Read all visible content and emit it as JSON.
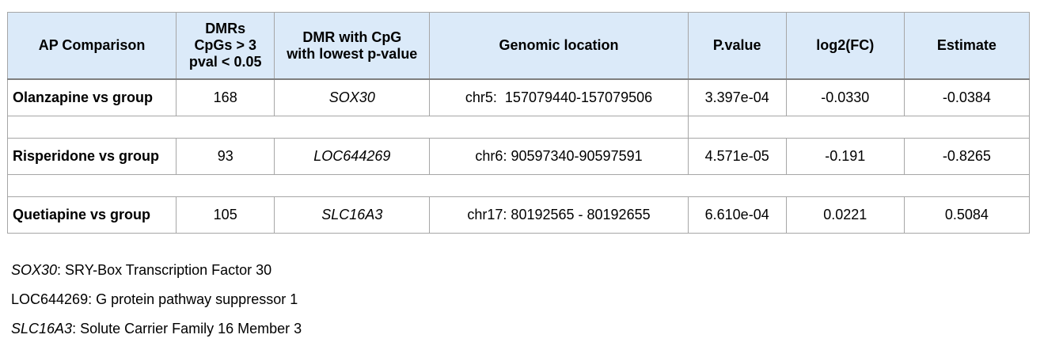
{
  "table": {
    "headers": [
      [
        "AP Comparison"
      ],
      [
        "DMRs",
        "CpGs > 3",
        "pval < 0.05"
      ],
      [
        "DMR with CpG",
        "with lowest p-value"
      ],
      [
        "Genomic location"
      ],
      [
        "P.value"
      ],
      [
        "log2(FC)"
      ],
      [
        "Estimate"
      ]
    ],
    "rows": [
      {
        "comparison": "Olanzapine vs group",
        "dmrs": "168",
        "gene": "SOX30",
        "location": "chr5:  157079440-157079506",
        "pvalue": "3.397e-04",
        "log2fc": "-0.0330",
        "estimate": "-0.0384"
      },
      {
        "comparison": "Risperidone vs group",
        "dmrs": "93",
        "gene": "LOC644269",
        "location": "chr6: 90597340-90597591",
        "pvalue": "4.571e-05",
        "log2fc": "-0.191",
        "estimate": "-0.8265"
      },
      {
        "comparison": "Quetiapine vs group",
        "dmrs": "105",
        "gene": "SLC16A3",
        "location": "chr17: 80192565 - 80192655",
        "pvalue": "6.610e-04",
        "log2fc": "0.0221",
        "estimate": "0.5084"
      }
    ]
  },
  "footnotes": [
    {
      "gene": "SOX30",
      "italic": true,
      "text": ": SRY-Box Transcription Factor 30"
    },
    {
      "gene": "LOC644269",
      "italic": false,
      "text": ": G protein pathway suppressor 1"
    },
    {
      "gene": "SLC16A3",
      "italic": true,
      "text": ": Solute Carrier Family 16 Member 3"
    }
  ]
}
